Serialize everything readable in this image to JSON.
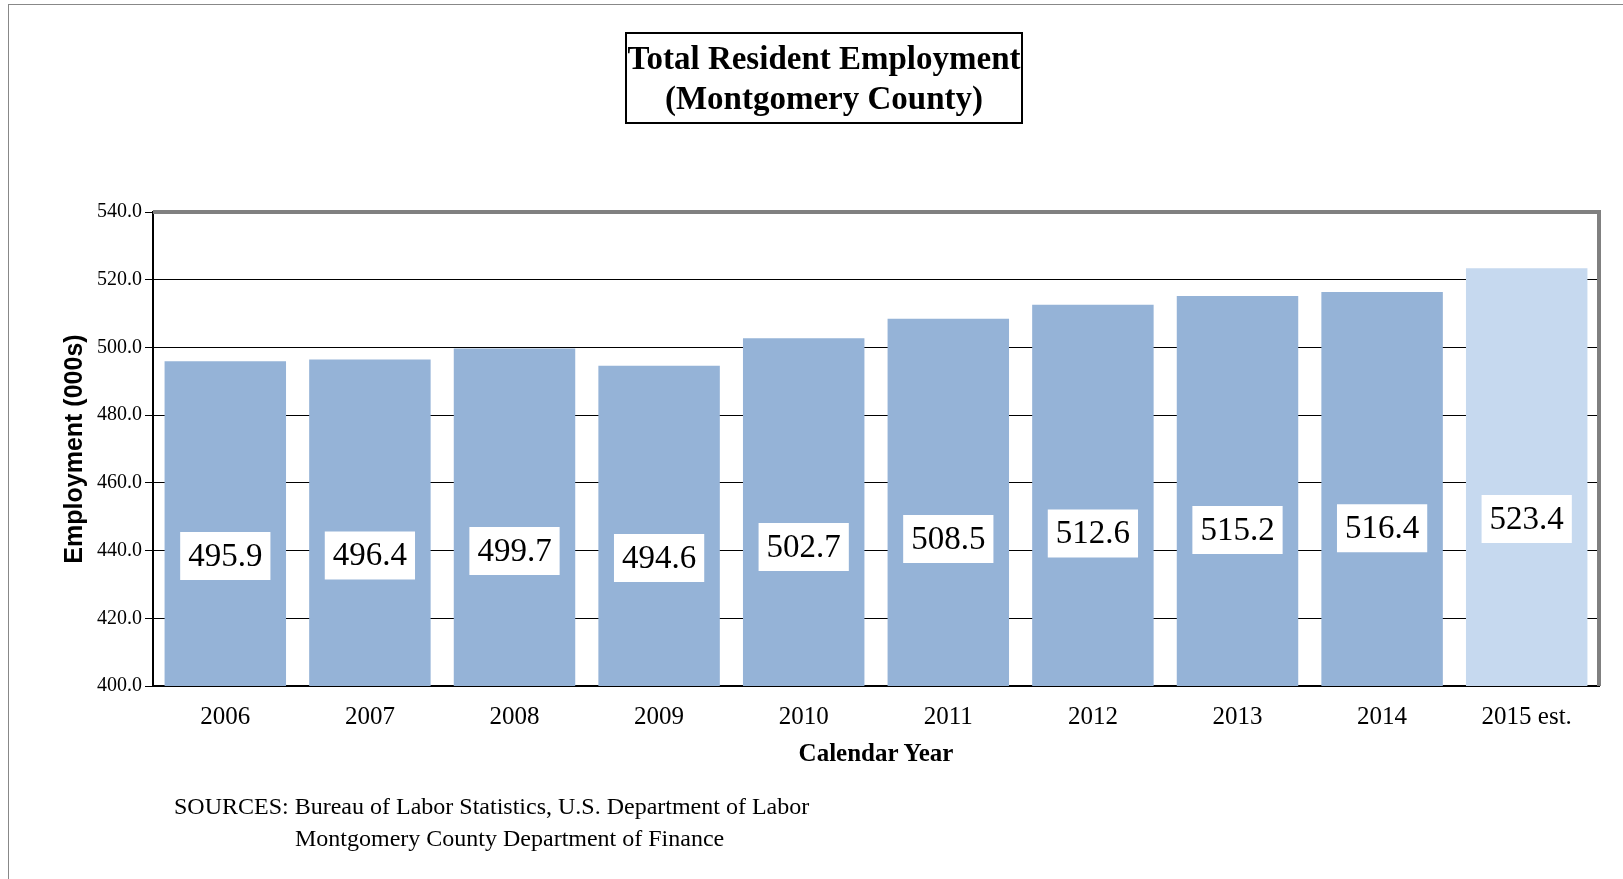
{
  "chart_data": {
    "type": "bar",
    "title": "Total Resident Employment\n(Montgomery County)",
    "xlabel": "Calendar Year",
    "ylabel": "Employment (000s)",
    "categories": [
      "2006",
      "2007",
      "2008",
      "2009",
      "2010",
      "2011",
      "2012",
      "2013",
      "2014",
      "2015 est."
    ],
    "values": [
      495.9,
      496.4,
      499.7,
      494.6,
      502.7,
      508.5,
      512.6,
      515.2,
      516.4,
      523.4
    ],
    "colors": [
      "#95b3d7",
      "#95b3d7",
      "#95b3d7",
      "#95b3d7",
      "#95b3d7",
      "#95b3d7",
      "#95b3d7",
      "#95b3d7",
      "#95b3d7",
      "#c6d9ef"
    ],
    "ylim": [
      400,
      540
    ],
    "yticks": [
      {
        "value": 400,
        "label": "400.0"
      },
      {
        "value": 420,
        "label": "420.0"
      },
      {
        "value": 440,
        "label": "440.0"
      },
      {
        "value": 460,
        "label": "460.0"
      },
      {
        "value": 480,
        "label": "480.0"
      },
      {
        "value": 500,
        "label": "500.0"
      },
      {
        "value": 520,
        "label": "520.0"
      },
      {
        "value": 540,
        "label": "540.0"
      }
    ],
    "grid": "y",
    "legend": false,
    "data_labels": true,
    "annotations": [
      "SOURCES:  Bureau of Labor Statistics, U.S. Department of Labor\nMontgomery County Department of Finance"
    ]
  }
}
